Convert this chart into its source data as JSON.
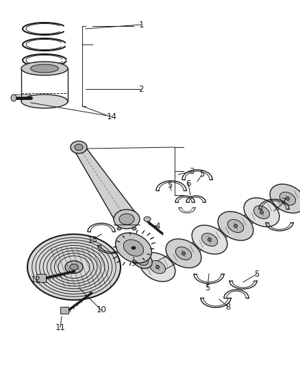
{
  "bg_color": "#ffffff",
  "line_color": "#1a1a1a",
  "label_color": "#1a1a1a",
  "fig_width": 4.38,
  "fig_height": 5.33,
  "dpi": 100,
  "font_size": 8.5
}
